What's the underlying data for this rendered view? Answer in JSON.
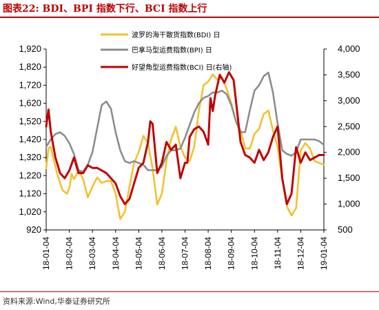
{
  "header": {
    "title": "图表22:  BDI、BPI 指数下行、BCI 指数上行"
  },
  "footer": {
    "source": "资料来源:Wind,华泰证券研究所"
  },
  "chart_data": {
    "type": "line",
    "title": "图表22:  BDI、BPI 指数下行、BCI 指数上行",
    "x_ticks": [
      "18-01-04",
      "18-02-04",
      "18-03-04",
      "18-04-04",
      "18-05-04",
      "18-06-04",
      "18-07-04",
      "18-08-04",
      "18-09-04",
      "18-10-04",
      "18-11-04",
      "18-12-04",
      "19-01-04"
    ],
    "y_left": {
      "min": 920,
      "max": 1920,
      "ticks": [
        920,
        1020,
        1120,
        1220,
        1320,
        1420,
        1520,
        1620,
        1720,
        1820,
        1920
      ]
    },
    "y_right": {
      "min": 500,
      "max": 4000,
      "ticks": [
        "500",
        "1,000",
        "1,500",
        "2,000",
        "2,500",
        "3,000",
        "3,500",
        "4,000"
      ]
    },
    "y_left_tick_labels": [
      "920",
      "1,020",
      "1,120",
      "1,220",
      "1,320",
      "1,420",
      "1,520",
      "1,620",
      "1,720",
      "1,820",
      "1,920"
    ],
    "grid": false,
    "legend_position": "top-center",
    "series": [
      {
        "name": "波罗的海干散货指数(BDI) 日",
        "axis": "left",
        "color": "#f2c12e",
        "x": [
          0,
          0.1,
          0.2,
          0.3,
          0.5,
          0.7,
          0.9,
          1.0,
          1.1,
          1.2,
          1.4,
          1.6,
          1.8,
          2.0,
          2.2,
          2.4,
          2.6,
          2.8,
          3.0,
          3.1,
          3.2,
          3.4,
          3.6,
          3.8,
          4.0,
          4.2,
          4.4,
          4.6,
          4.8,
          5.0,
          5.2,
          5.4,
          5.6,
          5.8,
          6.0,
          6.2,
          6.4,
          6.6,
          6.8,
          7.0,
          7.2,
          7.4,
          7.6,
          7.8,
          8.0,
          8.2,
          8.4,
          8.6,
          8.8,
          9.0,
          9.2,
          9.4,
          9.6,
          9.8,
          10.0,
          10.2,
          10.4,
          10.6,
          10.8,
          11.0,
          11.2,
          11.4,
          11.6,
          11.8,
          12.0
        ],
        "values": [
          1260,
          1370,
          1380,
          1320,
          1220,
          1140,
          1120,
          1150,
          1230,
          1200,
          1250,
          1200,
          1100,
          1160,
          1210,
          1180,
          1190,
          1190,
          1120,
          1050,
          980,
          1020,
          1160,
          1290,
          1350,
          1440,
          1400,
          1260,
          1060,
          1120,
          1300,
          1420,
          1490,
          1380,
          1320,
          1300,
          1380,
          1580,
          1720,
          1740,
          1780,
          1750,
          1760,
          1700,
          1620,
          1520,
          1470,
          1370,
          1370,
          1450,
          1480,
          1560,
          1580,
          1470,
          1380,
          1200,
          1050,
          1000,
          1040,
          1360,
          1400,
          1370,
          1300,
          1290,
          1280
        ]
      },
      {
        "name": "巴拿马型运费指数(BPI) 日",
        "axis": "left",
        "color": "#8c8c8c",
        "x": [
          0,
          0.2,
          0.4,
          0.6,
          0.8,
          1.0,
          1.2,
          1.4,
          1.6,
          1.8,
          2.0,
          2.2,
          2.4,
          2.6,
          2.8,
          3.0,
          3.2,
          3.4,
          3.6,
          3.8,
          4.0,
          4.2,
          4.4,
          4.6,
          4.8,
          5.0,
          5.2,
          5.4,
          5.6,
          5.8,
          6.0,
          6.2,
          6.4,
          6.6,
          6.8,
          7.0,
          7.2,
          7.4,
          7.6,
          7.8,
          8.0,
          8.2,
          8.4,
          8.6,
          8.8,
          9.0,
          9.2,
          9.4,
          9.6,
          9.8,
          10.0,
          10.2,
          10.4,
          10.6,
          10.8,
          11.0,
          11.2,
          11.4,
          11.6,
          11.8,
          12.0
        ],
        "values": [
          1380,
          1420,
          1450,
          1460,
          1440,
          1400,
          1340,
          1250,
          1240,
          1280,
          1350,
          1480,
          1610,
          1630,
          1590,
          1460,
          1360,
          1300,
          1290,
          1300,
          1290,
          1280,
          1250,
          1250,
          1250,
          1270,
          1330,
          1360,
          1360,
          1370,
          1430,
          1500,
          1570,
          1620,
          1650,
          1660,
          1680,
          1680,
          1690,
          1670,
          1610,
          1520,
          1460,
          1460,
          1580,
          1690,
          1720,
          1770,
          1790,
          1680,
          1510,
          1360,
          1340,
          1330,
          1350,
          1420,
          1420,
          1420,
          1420,
          1410,
          1390
        ]
      },
      {
        "name": "好望角型运费指数(BCI) 日(右轴)",
        "axis": "right",
        "color": "#c00000",
        "x": [
          0,
          0.1,
          0.2,
          0.4,
          0.6,
          0.8,
          1.0,
          1.2,
          1.4,
          1.6,
          1.8,
          2.0,
          2.2,
          2.4,
          2.6,
          2.8,
          3.0,
          3.2,
          3.4,
          3.6,
          3.8,
          4.0,
          4.2,
          4.4,
          4.5,
          4.6,
          4.8,
          5.0,
          5.2,
          5.4,
          5.6,
          5.8,
          6.0,
          6.1,
          6.2,
          6.4,
          6.6,
          6.8,
          7.0,
          7.1,
          7.2,
          7.3,
          7.5,
          7.7,
          7.9,
          8.1,
          8.2,
          8.4,
          8.6,
          8.8,
          9.0,
          9.2,
          9.4,
          9.6,
          9.8,
          10.0,
          10.2,
          10.4,
          10.6,
          10.8,
          11.0,
          11.2,
          11.4,
          11.6,
          11.8,
          12.0
        ],
        "values": [
          2500,
          2830,
          2400,
          1900,
          1600,
          1500,
          1650,
          1900,
          1600,
          1600,
          1750,
          1700,
          1700,
          1650,
          1600,
          1500,
          1400,
          1150,
          1000,
          1100,
          1400,
          1700,
          1800,
          2200,
          2600,
          2550,
          1600,
          1800,
          2200,
          2050,
          2150,
          1500,
          1800,
          1800,
          2300,
          2450,
          2500,
          2400,
          2150,
          3050,
          2800,
          3100,
          3500,
          3350,
          3550,
          3400,
          3000,
          2200,
          1950,
          1900,
          1800,
          2050,
          1850,
          2000,
          2300,
          2500,
          1500,
          1000,
          1200,
          2100,
          1800,
          2000,
          1850,
          1900,
          1950,
          1950
        ]
      }
    ]
  }
}
